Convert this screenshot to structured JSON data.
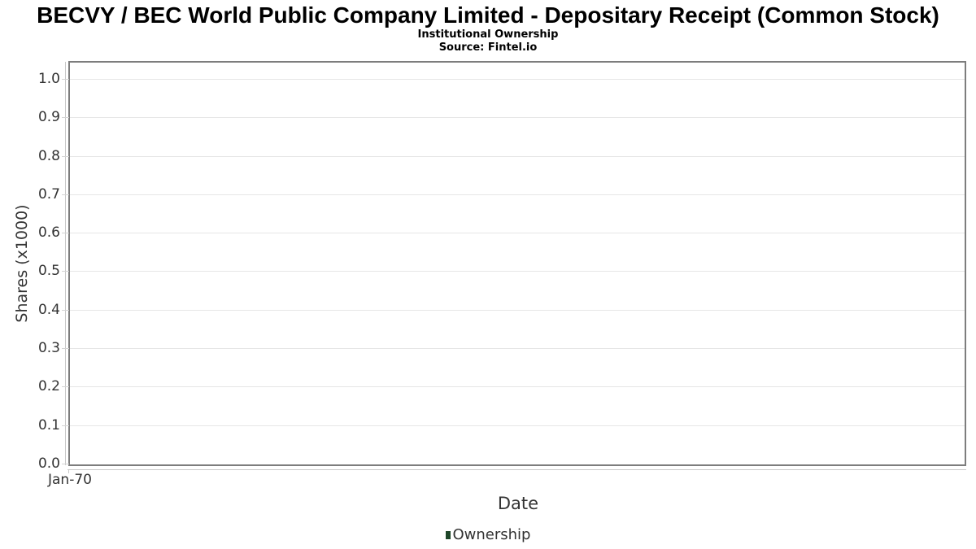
{
  "header": {
    "title": "BECVY / BEC World Public Company Limited - Depositary Receipt (Common Stock)",
    "subtitle": "Institutional Ownership",
    "source": "Source: Fintel.io"
  },
  "colors": {
    "grid": "#e6e6e6",
    "plot_border": "#7d7d7d",
    "axis_line": "#c8c8c8",
    "label_text": "#333333",
    "title_text": "#000000"
  },
  "chart_data": {
    "type": "bar",
    "title": "BECVY / BEC World Public Company Limited - Depositary Receipt (Common Stock)",
    "subtitle": "Institutional Ownership",
    "source": "Source: Fintel.io",
    "xlabel": "Date",
    "ylabel": "Shares (x1000)",
    "x_tick_labels": [
      "Jan-70"
    ],
    "y_tick_labels": [
      "0.0",
      "0.1",
      "0.2",
      "0.3",
      "0.4",
      "0.5",
      "0.6",
      "0.7",
      "0.8",
      "0.9",
      "1.0"
    ],
    "ylim": [
      0,
      1.05
    ],
    "grid": true,
    "legend_position": "bottom-center",
    "series": [
      {
        "name": "Ownership",
        "color": "#1e4629",
        "values": []
      }
    ]
  }
}
